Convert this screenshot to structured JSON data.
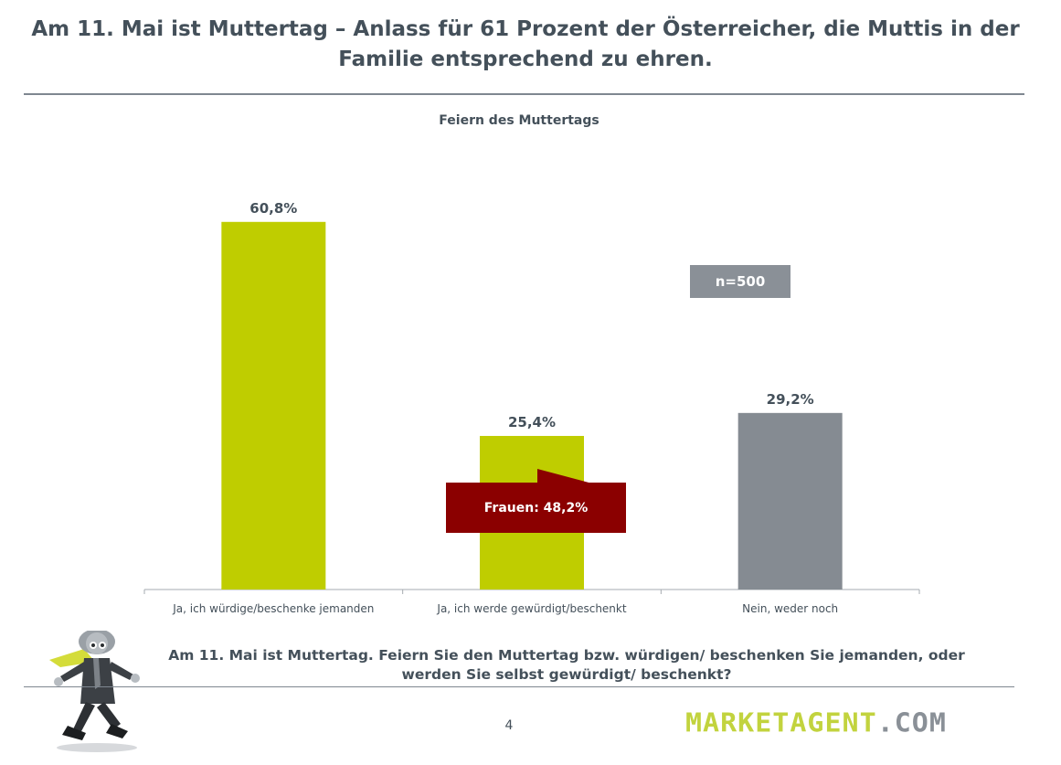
{
  "page": {
    "title": "Am 11. Mai ist Muttertag – Anlass für 61 Prozent der Österreicher, die Muttis in der Familie entsprechend zu ehren.",
    "question": "Am 11. Mai ist Muttertag. Feiern Sie den Muttertag bzw. würdigen/ beschenken Sie jemanden, oder werden Sie selbst gewürdigt/ beschenkt?",
    "page_number": "4",
    "sample_badge": "n=500",
    "callout": "Frauen: 48,2%",
    "logo": {
      "brand": "MARKETAGENT",
      "tld": ".COM"
    }
  },
  "colors": {
    "green": "#bfcd00",
    "gray": "#858b92",
    "callout_red": "#8b0000",
    "text": "#44505a"
  },
  "chart_data": {
    "type": "bar",
    "title": "Feiern des Muttertags",
    "categories": [
      "Ja, ich würdige/beschenke jemanden",
      "Ja, ich werde gewürdigt/beschenkt",
      "Nein, weder noch"
    ],
    "values": [
      60.8,
      25.4,
      29.2
    ],
    "value_labels": [
      "60,8%",
      "25,4%",
      "29,2%"
    ],
    "bar_colors": [
      "#bfcd00",
      "#bfcd00",
      "#858b92"
    ],
    "ylim": [
      0,
      65
    ],
    "grid": false,
    "legend": "none"
  }
}
